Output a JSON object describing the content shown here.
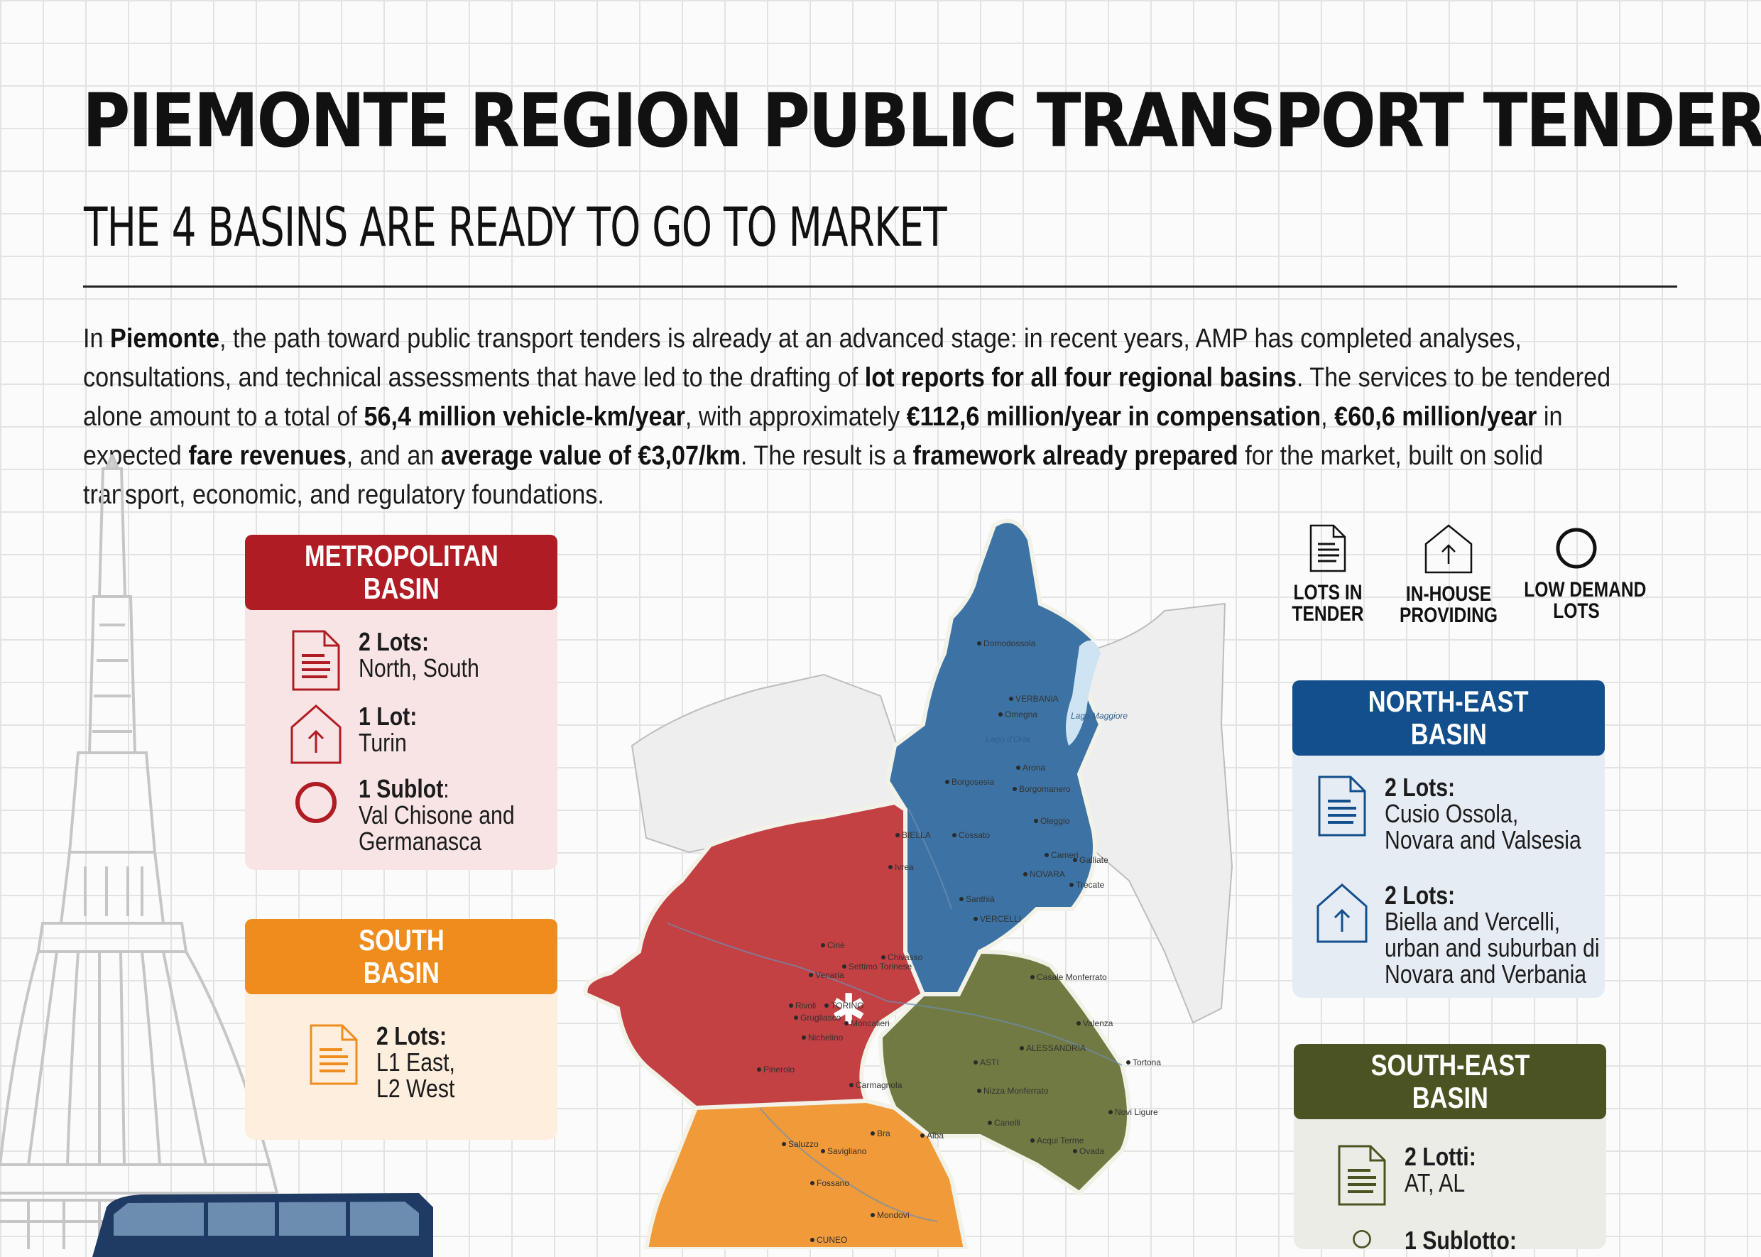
{
  "header": {
    "title": "PIEMONTE REGION PUBLIC TRANSPORT TENDERS:",
    "subtitle": "THE 4 BASINS ARE READY TO GO TO MARKET"
  },
  "intro": {
    "p1": "In ",
    "b1": "Piemonte",
    "p2": ", the path toward public transport tenders is already at an advanced stage: in recent years, AMP has completed analyses, consultations, and technical assessments that have led to the drafting of ",
    "b2": "lot reports for all four regional basins",
    "p3": ". The services to be tendered alone amount to a total of ",
    "b3": "56,4 million vehicle-km/year",
    "p4": ", with approximately ",
    "b4": "€112,6 million/year in compensation",
    "p5": ", ",
    "b5": "€60,6 million/year",
    "p6": " in expected ",
    "b6": "fare revenues",
    "p7": ", and an ",
    "b7": "average value of €3,07/km",
    "p8": ". The result is a ",
    "b8": "framework already prepared",
    "p9": " for the market, built on solid transport, economic, and regulatory foundations."
  },
  "legend": {
    "lots_in_tender": [
      "LOTS IN",
      "TENDER"
    ],
    "in_house": [
      "IN-HOUSE",
      "PROVIDING"
    ],
    "low_demand": [
      "LOW DEMAND",
      "LOTS"
    ]
  },
  "basins": {
    "metropolitan": {
      "title": [
        "METROPOLITAN",
        "BASIN"
      ],
      "color": "#b01c24",
      "items": [
        {
          "icon": "document-icon",
          "head": "2 Lots:",
          "lines": [
            "North, South"
          ]
        },
        {
          "icon": "house-arrow-icon",
          "head": "1 Lot:",
          "lines": [
            "Turin"
          ]
        },
        {
          "icon": "circle-icon",
          "head": "1 Sublot",
          "head_suffix": ":",
          "lines": [
            "Val Chisone and",
            "Germanasca"
          ]
        }
      ]
    },
    "south": {
      "title": [
        "SOUTH",
        "BASIN"
      ],
      "color": "#ef8c1e",
      "items": [
        {
          "icon": "document-icon",
          "head": "2 Lots:",
          "lines": [
            "L1 East,",
            "L2 West"
          ]
        }
      ]
    },
    "north_east": {
      "title": [
        "NORTH-EAST",
        "BASIN"
      ],
      "color": "#134f8c",
      "items": [
        {
          "icon": "document-icon",
          "head": "2 Lots:",
          "lines": [
            "Cusio Ossola,",
            "Novara and Valsesia"
          ]
        },
        {
          "icon": "house-arrow-icon",
          "head": "2 Lots:",
          "lines": [
            "Biella and Vercelli,",
            "urban and suburban di",
            "Novara and Verbania"
          ]
        }
      ]
    },
    "south_east": {
      "title": [
        "SOUTH-EAST",
        "BASIN"
      ],
      "color": "#4b5322",
      "items": [
        {
          "icon": "document-icon",
          "head": "2 Lotti:",
          "lines": [
            "AT, AL"
          ]
        },
        {
          "icon": "circle-icon",
          "head": "1 Sublotto:",
          "lines": []
        }
      ]
    }
  },
  "map": {
    "lake": "Lago Maggiore",
    "lake2": "Lago d'Orta",
    "cities": [
      "Domodossola",
      "VERBANIA",
      "Omegna",
      "Arona",
      "Borgomanero",
      "Borgosesia",
      "BIELLA",
      "Cossato",
      "Oleggio",
      "Cameri",
      "Galliate",
      "NOVARA",
      "Trecate",
      "Santhià",
      "VERCELLI",
      "Ivrea",
      "Ciriè",
      "Settimo Torinese",
      "Venaria",
      "Chivasso",
      "TORINO",
      "Rivoli",
      "Grugliasco",
      "Moncalieri",
      "Nichelino",
      "Pinerolo",
      "Carmagnola",
      "Casale Monferrato",
      "Valenza",
      "ALESSANDRIA",
      "ASTI",
      "Tortona",
      "Nizza Monferrato",
      "Canelli",
      "Novi Ligure",
      "Acqui Terme",
      "Ovada",
      "Bra",
      "Alba",
      "Saluzzo",
      "Savigliano",
      "Fossano",
      "Mondovì",
      "CUNEO"
    ]
  }
}
